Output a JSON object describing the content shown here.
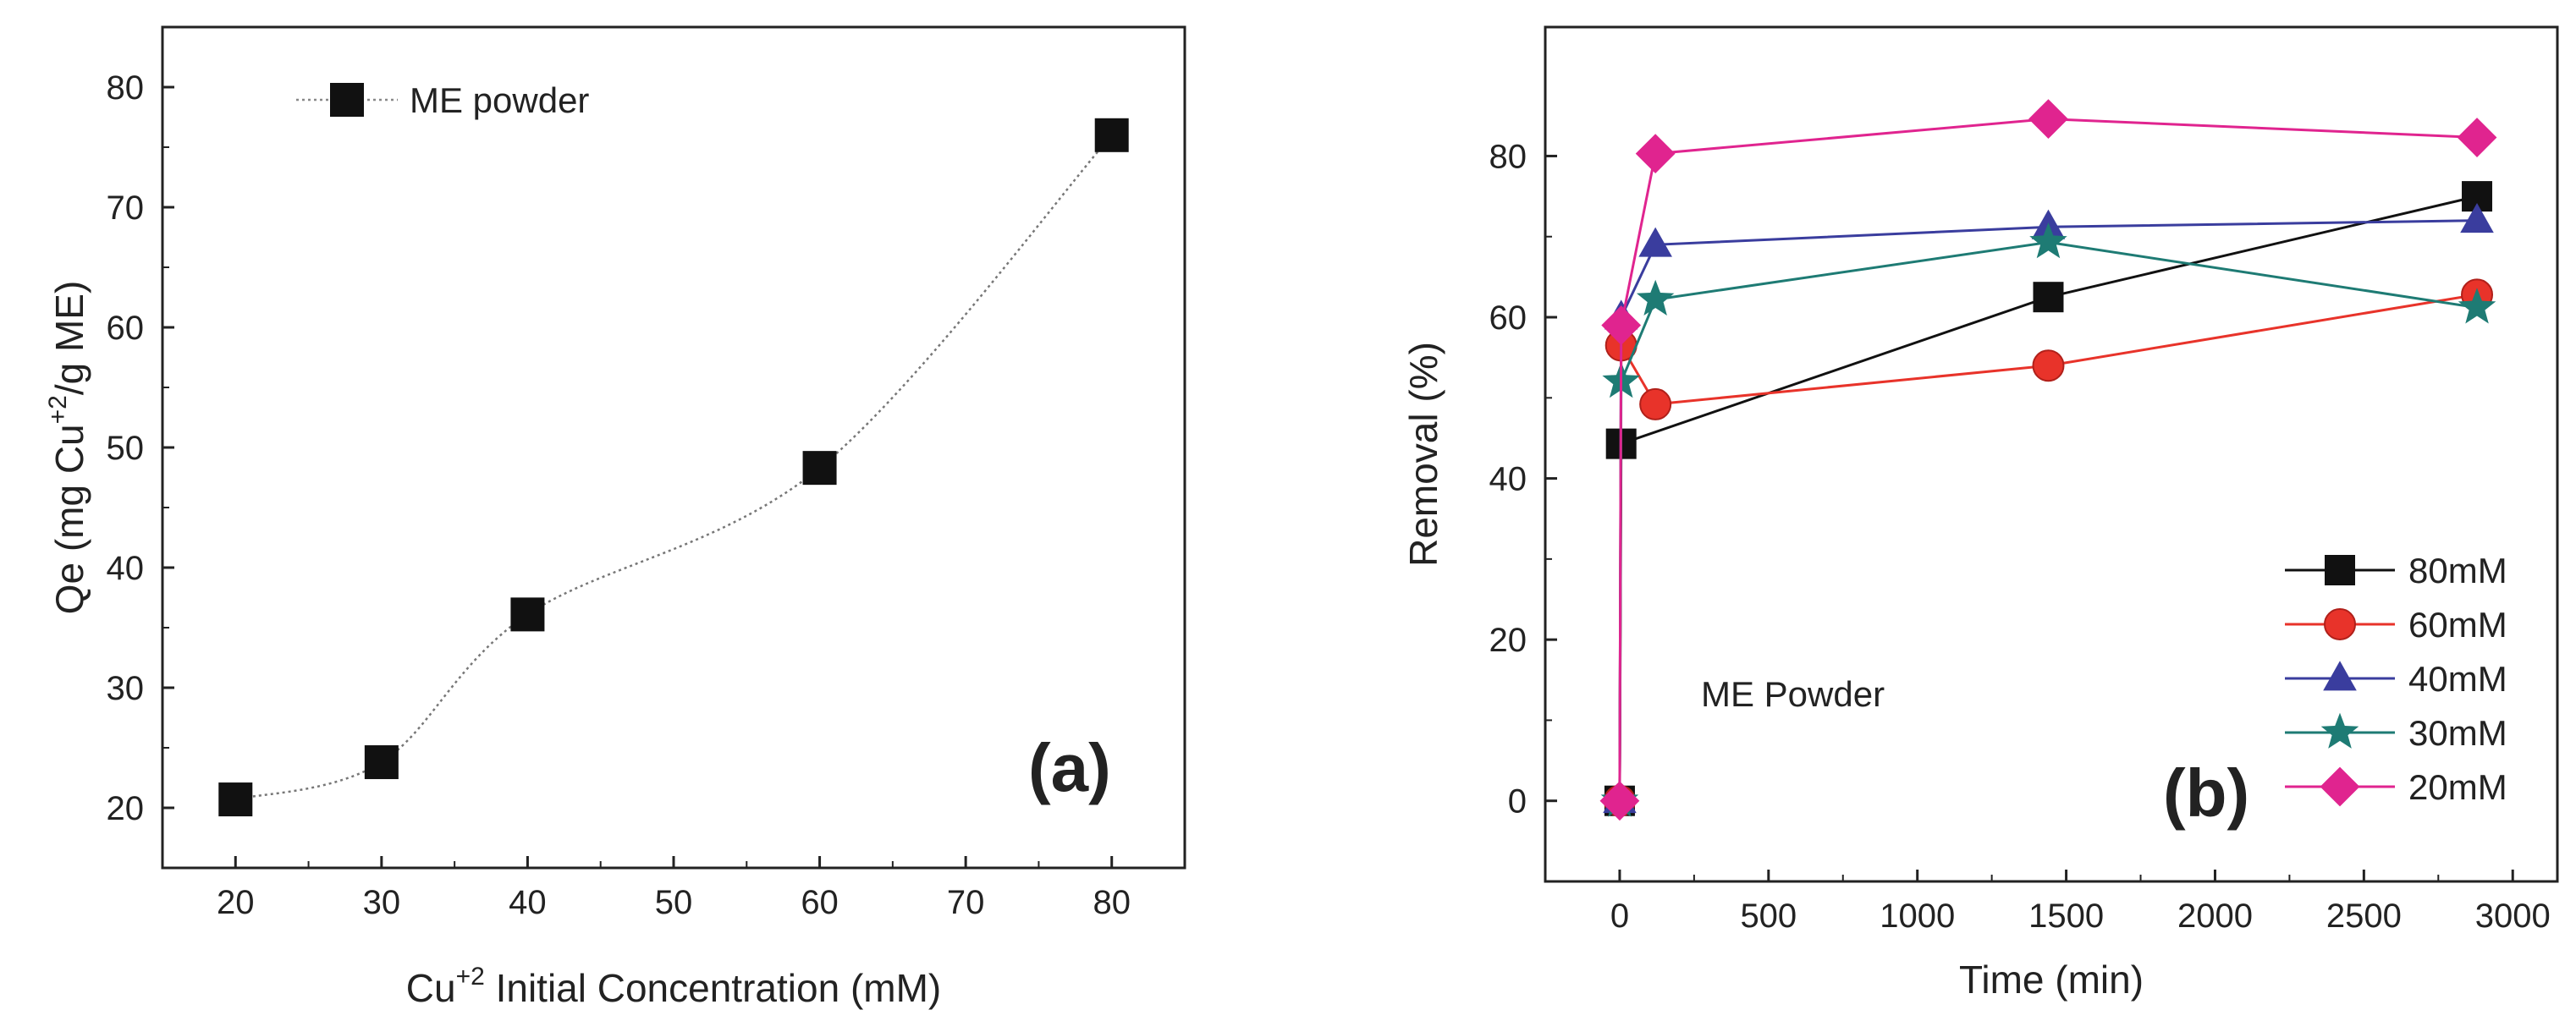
{
  "chart_data": [
    {
      "panel": "a",
      "type": "scatter",
      "title": "",
      "panel_label": "(a)",
      "xlabel": "Cu",
      "xlabel_sup": "+2",
      "xlabel_rest": " Initial Concentration (mM)",
      "ylabel_prefix": "Qe (mg Cu",
      "ylabel_sup": "+2",
      "ylabel_suffix": "/g ME)",
      "xlim": [
        15,
        85
      ],
      "ylim": [
        15,
        85
      ],
      "xticks": [
        20,
        30,
        40,
        50,
        60,
        70,
        80
      ],
      "yticks": [
        20,
        30,
        40,
        50,
        60,
        70,
        80
      ],
      "grid": false,
      "legend_position": "top-left",
      "series": [
        {
          "name": "ME powder",
          "marker": "square",
          "color": "#111111",
          "fit_line": "dotted",
          "x": [
            20,
            30,
            40,
            60,
            80
          ],
          "y": [
            20.7,
            23.8,
            36.1,
            48.3,
            76.0
          ]
        }
      ]
    },
    {
      "panel": "b",
      "type": "line",
      "title": "",
      "panel_label": "(b)",
      "annotation": "ME Powder",
      "xlabel": "Time (min)",
      "ylabel": "Removal (%)",
      "xlim": [
        -250,
        3150
      ],
      "ylim": [
        -10,
        96
      ],
      "xticks": [
        0,
        500,
        1000,
        1500,
        2000,
        2500,
        3000
      ],
      "yticks": [
        0,
        20,
        40,
        60,
        80
      ],
      "grid": false,
      "legend_position": "bottom-right",
      "series": [
        {
          "name": "80mM",
          "marker": "square",
          "color": "#111111",
          "x": [
            0,
            5,
            1440,
            2880
          ],
          "y": [
            0,
            44.3,
            62.5,
            75.0
          ]
        },
        {
          "name": "60mM",
          "marker": "circle",
          "color": "#e8332a",
          "x": [
            0,
            5,
            120,
            1440,
            2880
          ],
          "y": [
            0,
            56.5,
            49.2,
            54.0,
            62.8
          ]
        },
        {
          "name": "40mM",
          "marker": "triangle",
          "color": "#3a3d9e",
          "x": [
            0,
            5,
            120,
            1440,
            2880
          ],
          "y": [
            0,
            60.0,
            69.0,
            71.2,
            72.0
          ]
        },
        {
          "name": "30mM",
          "marker": "star",
          "color": "#1e7b74",
          "x": [
            0,
            5,
            120,
            1440,
            2880
          ],
          "y": [
            0,
            52.0,
            62.2,
            69.3,
            61.2
          ]
        },
        {
          "name": "20mM",
          "marker": "diamond",
          "color": "#e0248f",
          "x": [
            0,
            5,
            120,
            1440,
            2880
          ],
          "y": [
            0,
            59.0,
            80.3,
            84.6,
            82.3
          ]
        }
      ]
    }
  ]
}
